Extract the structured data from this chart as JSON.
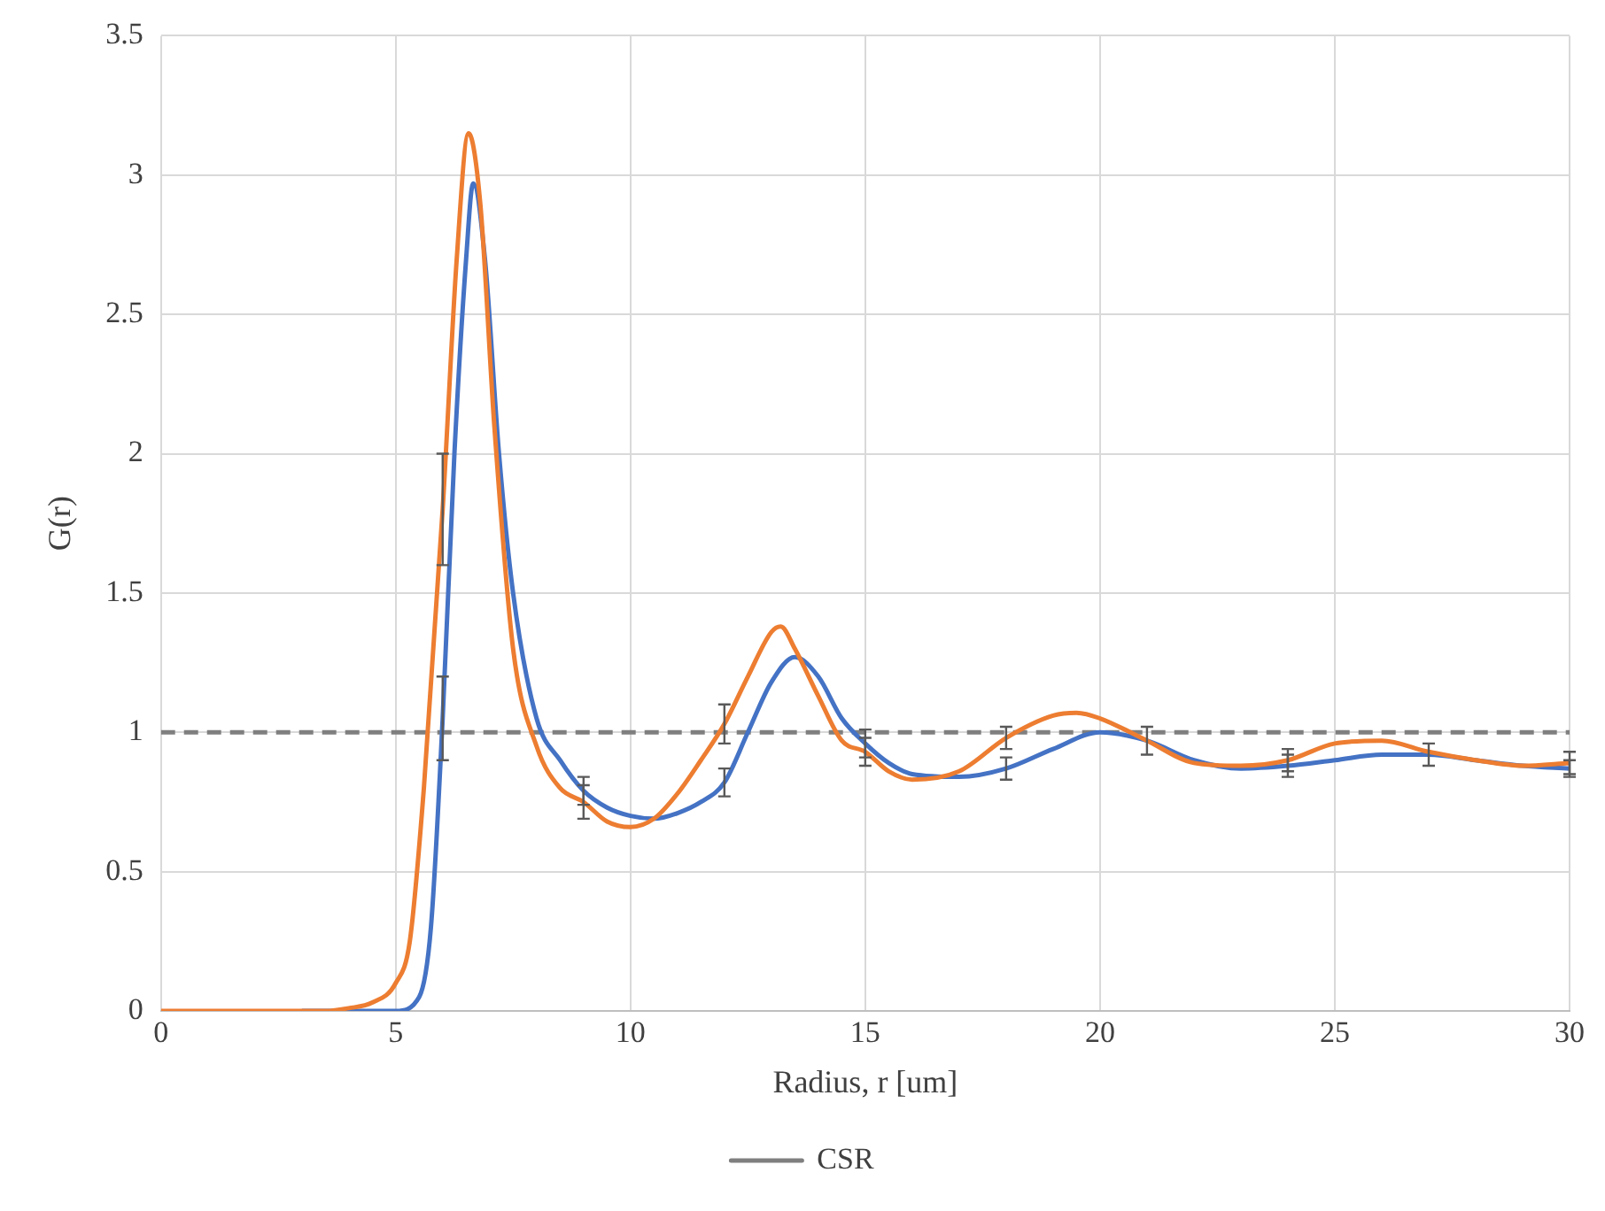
{
  "chart_data": {
    "type": "line",
    "xlabel": "Radius, r [um]",
    "ylabel": "G(r)",
    "xlim": [
      0,
      30
    ],
    "xticks": [
      0,
      5,
      10,
      15,
      20,
      25,
      30
    ],
    "ylim": [
      0,
      3.5
    ],
    "yticks": [
      0,
      0.5,
      1,
      1.5,
      2,
      2.5,
      3,
      3.5
    ],
    "grid": true,
    "legend": "bottom",
    "marker": "none",
    "series": [
      {
        "name": "CSR",
        "color": "#7f7f7f",
        "line_style": "dashed",
        "x": [
          0,
          30
        ],
        "values": [
          1,
          1
        ]
      },
      {
        "color": "#4472c4",
        "x": [
          3,
          4,
          5,
          5.5,
          5.75,
          6,
          6.25,
          6.5,
          6.65,
          6.9,
          7.2,
          7.5,
          8,
          8.5,
          9,
          9.5,
          10,
          10.5,
          11,
          11.5,
          12,
          12.5,
          13,
          13.5,
          14,
          14.5,
          15,
          15.5,
          16,
          17,
          18,
          19,
          20,
          21,
          22,
          23,
          24,
          25,
          26,
          27,
          28,
          29,
          30
        ],
        "values": [
          0,
          0,
          0,
          0.05,
          0.3,
          1.05,
          2.0,
          2.7,
          2.97,
          2.7,
          2.0,
          1.5,
          1.05,
          0.9,
          0.79,
          0.73,
          0.7,
          0.69,
          0.71,
          0.75,
          0.82,
          1.0,
          1.18,
          1.27,
          1.2,
          1.05,
          0.96,
          0.89,
          0.85,
          0.84,
          0.87,
          0.94,
          1.0,
          0.97,
          0.9,
          0.87,
          0.88,
          0.9,
          0.92,
          0.92,
          0.9,
          0.88,
          0.87
        ],
        "errors": [
          null,
          null,
          null,
          null,
          null,
          0.15,
          null,
          null,
          null,
          null,
          null,
          null,
          null,
          null,
          0.05,
          null,
          null,
          null,
          null,
          null,
          0.05,
          null,
          null,
          null,
          null,
          null,
          0.05,
          null,
          null,
          null,
          0.04,
          null,
          null,
          0.05,
          null,
          null,
          0.04,
          null,
          null,
          0.04,
          null,
          null,
          0.03
        ]
      },
      {
        "color": "#ed7d31",
        "x": [
          0,
          1,
          2,
          3,
          3.5,
          4,
          4.5,
          5,
          5.3,
          5.6,
          6,
          6.3,
          6.55,
          6.8,
          7.1,
          7.5,
          8,
          8.5,
          9,
          9.5,
          10,
          10.5,
          11,
          11.5,
          12,
          12.5,
          13,
          13.2,
          13.5,
          14,
          14.5,
          15,
          15.5,
          16,
          17,
          18,
          19,
          19.5,
          20,
          21,
          22,
          23,
          24,
          25,
          26,
          27,
          28,
          29,
          30
        ],
        "values": [
          0,
          0,
          0,
          0,
          0,
          0.01,
          0.03,
          0.1,
          0.25,
          0.8,
          1.8,
          2.7,
          3.15,
          2.9,
          2.1,
          1.3,
          0.95,
          0.8,
          0.75,
          0.68,
          0.66,
          0.69,
          0.78,
          0.9,
          1.03,
          1.2,
          1.36,
          1.38,
          1.3,
          1.13,
          0.97,
          0.93,
          0.86,
          0.83,
          0.86,
          0.98,
          1.06,
          1.07,
          1.05,
          0.97,
          0.89,
          0.88,
          0.9,
          0.96,
          0.97,
          0.93,
          0.9,
          0.88,
          0.89
        ],
        "errors": [
          null,
          null,
          null,
          null,
          null,
          null,
          null,
          null,
          null,
          null,
          0.2,
          null,
          null,
          null,
          null,
          null,
          null,
          null,
          0.06,
          null,
          null,
          null,
          null,
          null,
          0.07,
          null,
          null,
          null,
          null,
          null,
          null,
          0.05,
          null,
          null,
          null,
          0.04,
          null,
          null,
          null,
          null,
          null,
          null,
          0.04,
          null,
          null,
          null,
          null,
          null,
          0.04
        ]
      }
    ]
  }
}
